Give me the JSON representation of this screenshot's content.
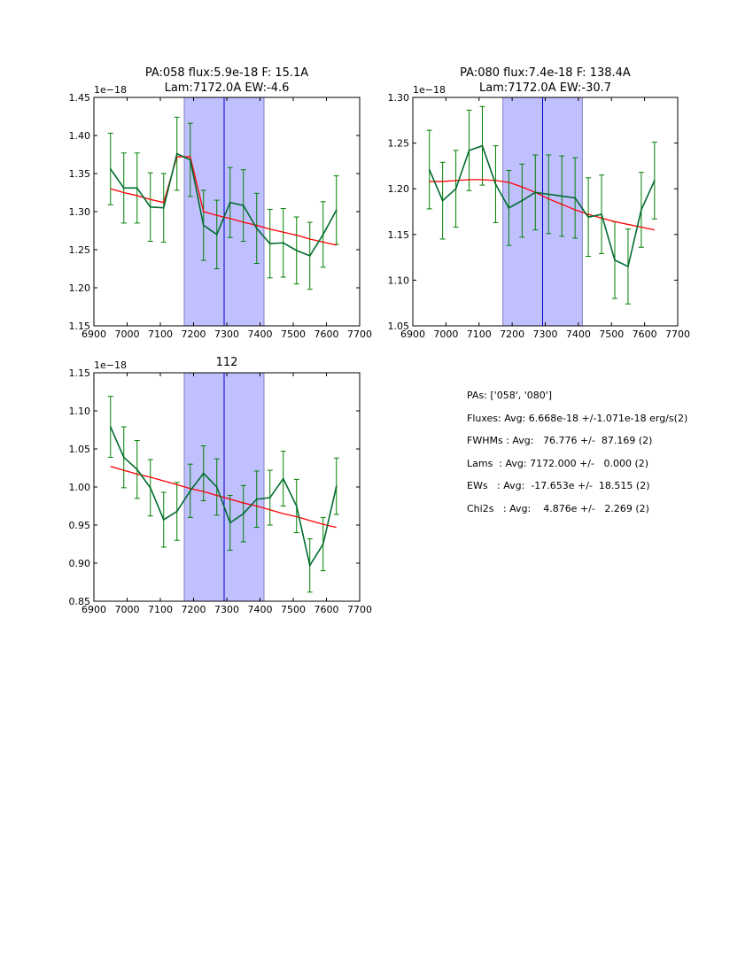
{
  "chart_data": [
    {
      "type": "line",
      "title": [
        "PA:058 flux:5.9e-18 F: 15.1A",
        "Lam:7172.0A EW:-4.6"
      ],
      "offset_label": "1e−18",
      "xlim": [
        6900,
        7700
      ],
      "ylim": [
        1.15,
        1.45
      ],
      "xticks": [
        6900,
        7000,
        7100,
        7200,
        7300,
        7400,
        7500,
        7600,
        7700
      ],
      "yticks": [
        "1.15",
        "1.20",
        "1.25",
        "1.30",
        "1.35",
        "1.40",
        "1.45"
      ],
      "band": [
        7172,
        7412
      ],
      "line_center": 7292,
      "x": [
        6950,
        6990,
        7030,
        7070,
        7110,
        7150,
        7190,
        7230,
        7270,
        7310,
        7350,
        7390,
        7430,
        7470,
        7510,
        7550,
        7590,
        7630
      ],
      "y": [
        1.356,
        1.331,
        1.331,
        1.306,
        1.305,
        1.376,
        1.368,
        1.282,
        1.27,
        1.312,
        1.308,
        1.278,
        1.258,
        1.259,
        1.249,
        1.242,
        1.27,
        1.302
      ],
      "err": [
        0.047,
        0.046,
        0.046,
        0.045,
        0.045,
        0.048,
        0.048,
        0.046,
        0.045,
        0.046,
        0.047,
        0.046,
        0.045,
        0.045,
        0.044,
        0.044,
        0.043,
        0.045
      ],
      "fit": [
        1.33,
        1.325,
        1.321,
        1.316,
        1.312,
        1.372,
        1.372,
        1.3,
        1.295,
        1.291,
        1.286,
        1.282,
        1.277,
        1.273,
        1.269,
        1.264,
        1.26,
        1.256
      ]
    },
    {
      "type": "line",
      "title": [
        "PA:080 flux:7.4e-18 F: 138.4A",
        "Lam:7172.0A EW:-30.7"
      ],
      "offset_label": "1e−18",
      "xlim": [
        6900,
        7700
      ],
      "ylim": [
        1.05,
        1.3
      ],
      "xticks": [
        6900,
        7000,
        7100,
        7200,
        7300,
        7400,
        7500,
        7600,
        7700
      ],
      "yticks": [
        "1.05",
        "1.10",
        "1.15",
        "1.20",
        "1.25",
        "1.30"
      ],
      "band": [
        7172,
        7412
      ],
      "line_center": 7292,
      "x": [
        6950,
        6990,
        7030,
        7070,
        7110,
        7150,
        7190,
        7230,
        7270,
        7310,
        7350,
        7390,
        7430,
        7470,
        7510,
        7550,
        7590,
        7630
      ],
      "y": [
        1.221,
        1.187,
        1.2,
        1.242,
        1.247,
        1.205,
        1.179,
        1.187,
        1.196,
        1.194,
        1.192,
        1.19,
        1.169,
        1.172,
        1.122,
        1.115,
        1.177,
        1.209
      ],
      "err": [
        0.043,
        0.042,
        0.042,
        0.044,
        0.043,
        0.042,
        0.041,
        0.04,
        0.041,
        0.043,
        0.044,
        0.044,
        0.043,
        0.043,
        0.042,
        0.041,
        0.041,
        0.042
      ],
      "fit": [
        1.208,
        1.208,
        1.209,
        1.21,
        1.21,
        1.209,
        1.207,
        1.202,
        1.196,
        1.189,
        1.183,
        1.177,
        1.172,
        1.168,
        1.164,
        1.161,
        1.158,
        1.155
      ]
    },
    {
      "type": "line",
      "title": [
        "112"
      ],
      "offset_label": "1e−18",
      "xlim": [
        6900,
        7700
      ],
      "ylim": [
        0.85,
        1.15
      ],
      "xticks": [
        6900,
        7000,
        7100,
        7200,
        7300,
        7400,
        7500,
        7600,
        7700
      ],
      "yticks": [
        "0.85",
        "0.90",
        "0.95",
        "1.00",
        "1.05",
        "1.10",
        "1.15"
      ],
      "band": [
        7172,
        7412
      ],
      "line_center": 7292,
      "x": [
        6950,
        6990,
        7030,
        7070,
        7110,
        7150,
        7190,
        7230,
        7270,
        7310,
        7350,
        7390,
        7430,
        7470,
        7510,
        7550,
        7590,
        7630
      ],
      "y": [
        1.079,
        1.039,
        1.023,
        0.999,
        0.957,
        0.968,
        0.995,
        1.018,
        1.0,
        0.953,
        0.965,
        0.984,
        0.986,
        1.011,
        0.975,
        0.897,
        0.925,
        1.001
      ],
      "err": [
        0.04,
        0.04,
        0.038,
        0.037,
        0.036,
        0.038,
        0.035,
        0.036,
        0.037,
        0.036,
        0.037,
        0.037,
        0.036,
        0.036,
        0.035,
        0.035,
        0.035,
        0.037
      ],
      "fit": [
        1.027,
        1.022,
        1.017,
        1.013,
        1.008,
        1.003,
        0.998,
        0.994,
        0.989,
        0.984,
        0.979,
        0.975,
        0.97,
        0.965,
        0.961,
        0.956,
        0.951,
        0.947
      ]
    }
  ],
  "colors": {
    "data": "#006b2e",
    "errbar": "#008000",
    "fit": "#ff0000",
    "band": "#c0c0ff",
    "band_edge": "#8080c0",
    "center": "#0000cc"
  },
  "stats": {
    "pas": "PAs: ['058', '080']",
    "fluxes": "Fluxes: Avg: 6.668e-18 +/-1.071e-18 erg/s(2)",
    "fwhms": "FWHMs : Avg:   76.776 +/-  87.169 (2)",
    "lams": "Lams  : Avg: 7172.000 +/-   0.000 (2)",
    "ews": "EWs   : Avg:  -17.653e +/-  18.515 (2)",
    "chi2s": "Chi2s   : Avg:    4.876e +/-   2.269 (2)"
  }
}
